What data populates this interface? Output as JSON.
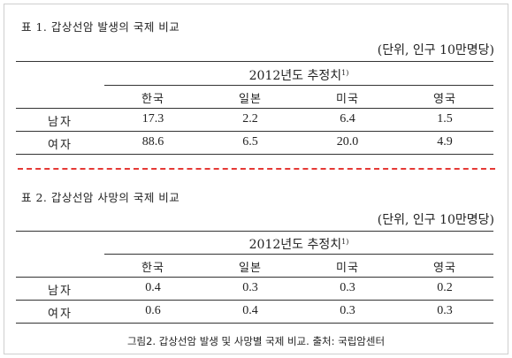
{
  "table1": {
    "caption": "표 1. 갑상선암 발생의 국제 비교",
    "unit": "(단위, 인구 10만명당)",
    "estimate_label": "2012년도 추정치",
    "footnote_mark": "1)",
    "countries": [
      "한국",
      "일본",
      "미국",
      "영국"
    ],
    "rows": [
      {
        "label": "남자",
        "values": [
          "17.3",
          "2.2",
          "6.4",
          "1.5"
        ]
      },
      {
        "label": "여자",
        "values": [
          "88.6",
          "6.5",
          "20.0",
          "4.9"
        ]
      }
    ]
  },
  "table2": {
    "caption": "표 2. 갑상선암 사망의 국제 비교",
    "unit": "(단위, 인구 10만명당)",
    "estimate_label": "2012년도 추정치",
    "footnote_mark": "1)",
    "countries": [
      "한국",
      "일본",
      "미국",
      "영국"
    ],
    "rows": [
      {
        "label": "남자",
        "values": [
          "0.4",
          "0.3",
          "0.3",
          "0.2"
        ]
      },
      {
        "label": "여자",
        "values": [
          "0.6",
          "0.4",
          "0.3",
          "0.3"
        ]
      }
    ]
  },
  "figure_caption": "그림2. 갑상선암 발생 및 사망별 국제 비교. 출처: 국립암센터",
  "colors": {
    "divider": "#e53935",
    "text": "#222222",
    "rule": "#333333"
  }
}
